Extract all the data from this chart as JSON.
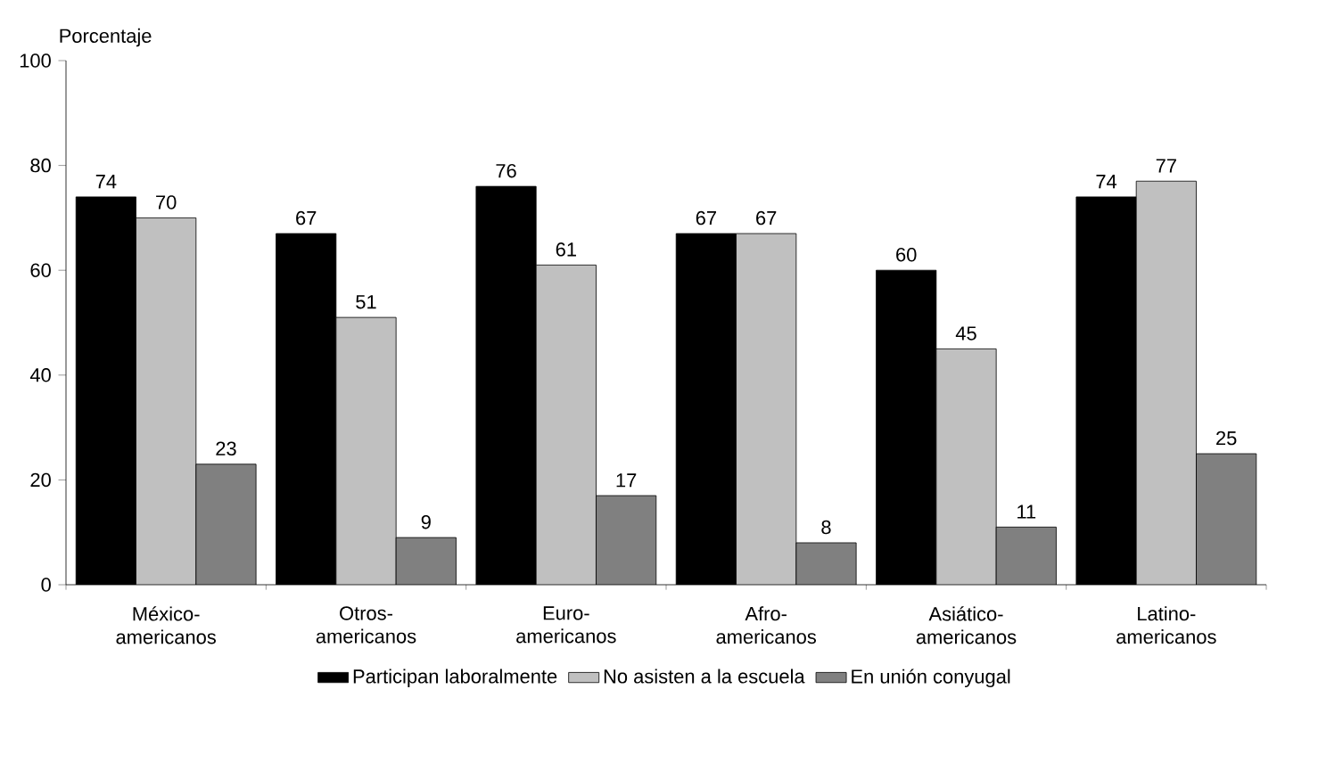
{
  "chart_data": {
    "type": "bar",
    "ylabel": "Porcentaje",
    "categories": [
      "México-americanos",
      "Otros-americanos",
      "Euro-americanos",
      "Afro-americanos",
      "Asiático-americanos",
      "Latino-americanos"
    ],
    "series": [
      {
        "name": "Participan laboralmente",
        "color": "#000000",
        "values": [
          74,
          67,
          76,
          67,
          60,
          74
        ]
      },
      {
        "name": "No asisten a la escuela",
        "color": "#c0c0c0",
        "values": [
          70,
          51,
          61,
          67,
          45,
          77
        ]
      },
      {
        "name": "En unión conyugal",
        "color": "#808080",
        "values": [
          23,
          9,
          17,
          8,
          11,
          25
        ]
      }
    ],
    "ylim": [
      0,
      100
    ],
    "yticks": [
      0,
      20,
      40,
      60,
      80,
      100
    ],
    "data_labels": true,
    "legend": "bottom"
  }
}
